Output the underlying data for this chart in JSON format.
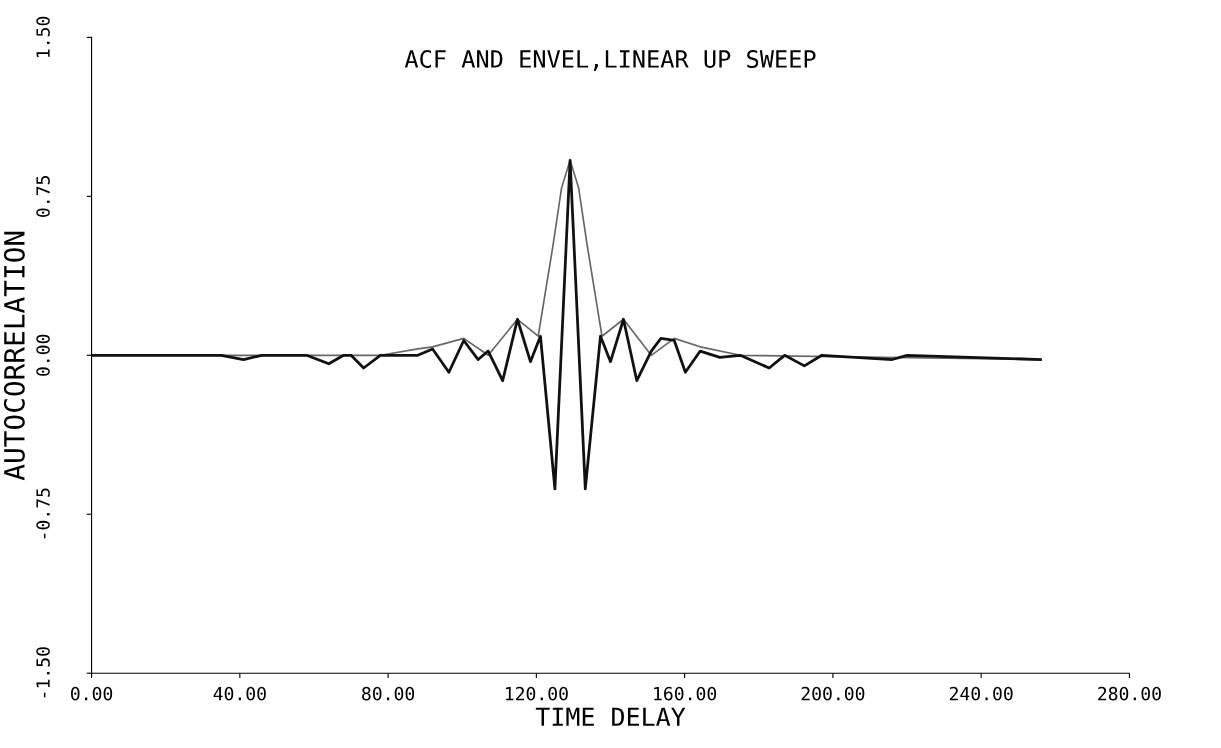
{
  "chart_data": {
    "type": "line",
    "title": "ACF AND ENVEL,LINEAR UP SWEEP",
    "xlabel": "TIME DELAY",
    "ylabel": "AUTOCORRELATION",
    "xlim": [
      0,
      280
    ],
    "ylim": [
      -1.5,
      1.5
    ],
    "xticks": [
      {
        "value": 0,
        "label": "0.00"
      },
      {
        "value": 40,
        "label": "40.00"
      },
      {
        "value": 80,
        "label": "80.00"
      },
      {
        "value": 120,
        "label": "120.00"
      },
      {
        "value": 160,
        "label": "160.00"
      },
      {
        "value": 200,
        "label": "200.00"
      },
      {
        "value": 240,
        "label": "240.00"
      },
      {
        "value": 280,
        "label": "280.00"
      }
    ],
    "yticks": [
      {
        "value": -1.5,
        "label": "-1.50"
      },
      {
        "value": -0.75,
        "label": "-0.75"
      },
      {
        "value": 0,
        "label": "0.00"
      },
      {
        "value": 0.75,
        "label": "0.75"
      },
      {
        "value": 1.5,
        "label": "1.50"
      }
    ],
    "grid": false,
    "line_style": "solid",
    "marker": "none",
    "series": [
      {
        "color": "#111111",
        "x": [
          0,
          35,
          41,
          46,
          58,
          64,
          68,
          70,
          73.4,
          77.9,
          88,
          92,
          96.4,
          100.4,
          104.3,
          107,
          110.9,
          114.9,
          118.4,
          121.1,
          125,
          129.1,
          133.2,
          137.3,
          140,
          143.5,
          147.1,
          151,
          153.6,
          157.2,
          160.2,
          164.2,
          169.5,
          175,
          182.8,
          187,
          192.3,
          197,
          216,
          220,
          256
        ],
        "values": [
          0,
          0,
          -0.02,
          0,
          0,
          -0.04,
          0,
          0,
          -0.06,
          0,
          0,
          0.03,
          -0.08,
          0.07,
          -0.02,
          0.02,
          -0.12,
          0.17,
          -0.03,
          0.09,
          -0.63,
          0.92,
          -0.63,
          0.09,
          -0.03,
          0.17,
          -0.12,
          0.02,
          0.08,
          0.07,
          -0.08,
          0.02,
          -0.01,
          0,
          -0.06,
          0,
          -0.05,
          0,
          -0.02,
          0,
          -0.02
        ]
      },
      {
        "color": "#666666",
        "x": [
          0,
          78,
          88,
          92,
          100.4,
          107,
          114.9,
          120.5,
          124.5,
          126.8,
          129.1,
          131.4,
          133.7,
          137.7,
          143.5,
          151,
          157.2,
          164.2,
          175,
          256
        ],
        "values": [
          0,
          0,
          0.03,
          0.04,
          0.08,
          0,
          0.17,
          0.09,
          0.52,
          0.79,
          0.92,
          0.79,
          0.52,
          0.09,
          0.17,
          0,
          0.08,
          0.04,
          0,
          -0.02
        ]
      }
    ]
  }
}
